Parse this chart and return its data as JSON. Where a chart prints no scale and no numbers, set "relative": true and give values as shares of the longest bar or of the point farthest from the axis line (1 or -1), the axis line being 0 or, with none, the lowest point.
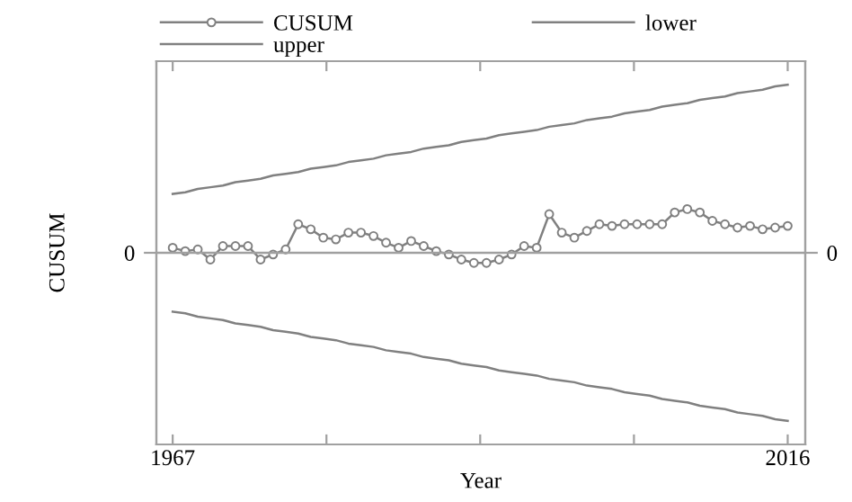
{
  "chart_data": {
    "type": "line",
    "relative": true,
    "xlabel": "Year",
    "ylabel": "CUSUM",
    "x": [
      1967,
      1968,
      1969,
      1970,
      1971,
      1972,
      1973,
      1974,
      1975,
      1976,
      1977,
      1978,
      1979,
      1980,
      1981,
      1982,
      1983,
      1984,
      1985,
      1986,
      1987,
      1988,
      1989,
      1990,
      1991,
      1992,
      1993,
      1994,
      1995,
      1996,
      1997,
      1998,
      1999,
      2000,
      2001,
      2002,
      2003,
      2004,
      2005,
      2006,
      2007,
      2008,
      2009,
      2010,
      2011,
      2012,
      2013,
      2014,
      2015,
      2016
    ],
    "xlim": [
      1965.7,
      2017.4
    ],
    "xticks": [
      1967,
      {
        "value": 1979.25,
        "label": null
      },
      {
        "value": 1991.5,
        "label": null
      },
      {
        "value": 2003.75,
        "label": null
      },
      2016
    ],
    "ref_lines": [
      {
        "axis": "y",
        "value": 0,
        "label": "0",
        "color": "#a0a0a0"
      }
    ],
    "legend": "top",
    "grid": false,
    "series": [
      {
        "name": "CUSUM",
        "color": "#808080",
        "marker": "circle",
        "values": [
          0.03,
          0.01,
          0.02,
          -0.04,
          0.04,
          0.04,
          0.04,
          -0.04,
          -0.01,
          0.02,
          0.17,
          0.14,
          0.09,
          0.08,
          0.12,
          0.12,
          0.1,
          0.06,
          0.03,
          0.07,
          0.04,
          0.01,
          -0.01,
          -0.04,
          -0.06,
          -0.06,
          -0.04,
          -0.01,
          0.04,
          0.03,
          0.23,
          0.12,
          0.09,
          0.13,
          0.17,
          0.16,
          0.17,
          0.17,
          0.17,
          0.17,
          0.24,
          0.26,
          0.24,
          0.19,
          0.17,
          0.15,
          0.16,
          0.14,
          0.15,
          0.16
        ]
      },
      {
        "name": "lower",
        "color": "#808080",
        "marker": "none",
        "values": [
          -0.35,
          -0.36,
          -0.38,
          -0.39,
          -0.4,
          -0.42,
          -0.43,
          -0.44,
          -0.46,
          -0.47,
          -0.48,
          -0.5,
          -0.51,
          -0.52,
          -0.54,
          -0.55,
          -0.56,
          -0.58,
          -0.59,
          -0.6,
          -0.62,
          -0.63,
          -0.64,
          -0.66,
          -0.67,
          -0.68,
          -0.7,
          -0.71,
          -0.72,
          -0.73,
          -0.75,
          -0.76,
          -0.77,
          -0.79,
          -0.8,
          -0.81,
          -0.83,
          -0.84,
          -0.85,
          -0.87,
          -0.88,
          -0.89,
          -0.91,
          -0.92,
          -0.93,
          -0.95,
          -0.96,
          -0.97,
          -0.99,
          -1
        ]
      },
      {
        "name": "upper",
        "color": "#808080",
        "marker": "none",
        "values": [
          0.35,
          0.36,
          0.38,
          0.39,
          0.4,
          0.42,
          0.43,
          0.44,
          0.46,
          0.47,
          0.48,
          0.5,
          0.51,
          0.52,
          0.54,
          0.55,
          0.56,
          0.58,
          0.59,
          0.6,
          0.62,
          0.63,
          0.64,
          0.66,
          0.67,
          0.68,
          0.7,
          0.71,
          0.72,
          0.73,
          0.75,
          0.76,
          0.77,
          0.79,
          0.8,
          0.81,
          0.83,
          0.84,
          0.85,
          0.87,
          0.88,
          0.89,
          0.91,
          0.92,
          0.93,
          0.95,
          0.96,
          0.97,
          0.99,
          1
        ]
      }
    ]
  }
}
